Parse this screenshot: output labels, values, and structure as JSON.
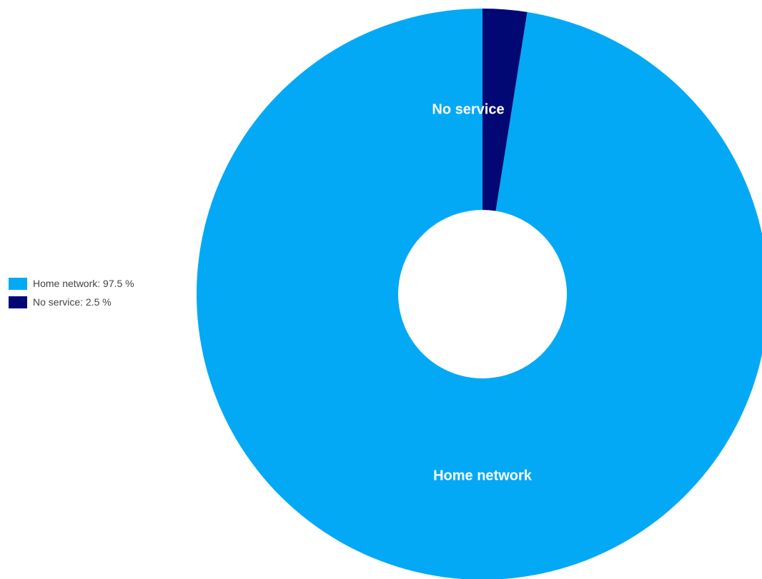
{
  "chart_data": {
    "type": "pie",
    "donut": true,
    "categories": [
      "Home network",
      "No service"
    ],
    "values": [
      97.5,
      2.5
    ],
    "unit": "%",
    "colors": [
      "#03a9f4",
      "#020873"
    ],
    "background": "#ffffff",
    "legend_position": "left",
    "legend": [
      {
        "label": "Home network: 97.5 %",
        "color": "#03a9f4"
      },
      {
        "label": "No service: 2.5 %",
        "color": "#020873"
      }
    ],
    "slice_labels": [
      "Home network",
      "No service"
    ],
    "title": ""
  }
}
